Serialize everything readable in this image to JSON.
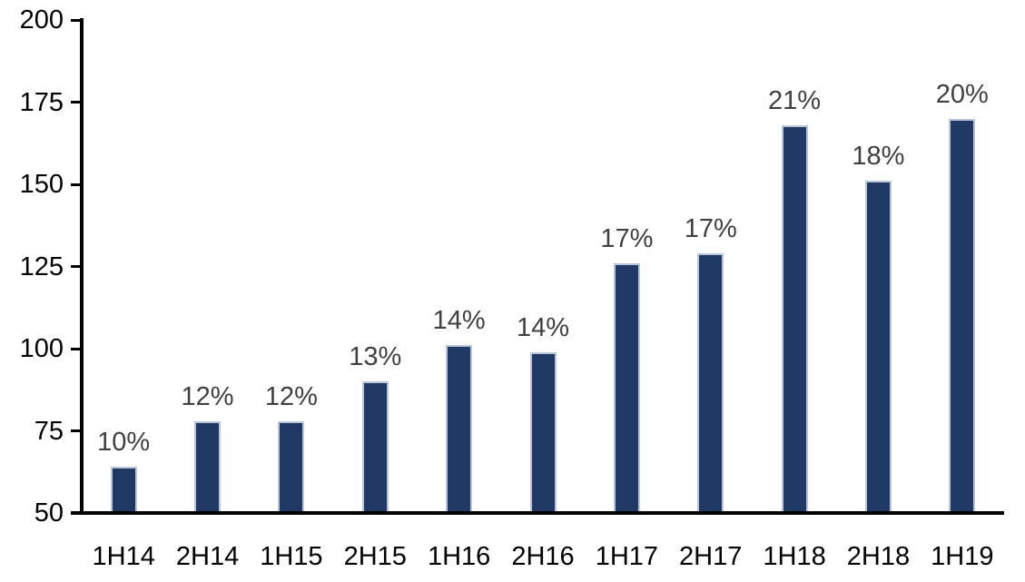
{
  "chart_data": {
    "type": "bar",
    "title": "",
    "xlabel": "",
    "ylabel": "",
    "categories": [
      "1H14",
      "2H14",
      "1H15",
      "2H15",
      "1H16",
      "2H16",
      "1H17",
      "2H17",
      "1H18",
      "2H18",
      "1H19"
    ],
    "values": [
      64,
      78,
      78,
      90,
      101,
      99,
      126,
      129,
      168,
      151,
      170
    ],
    "bar_labels": [
      "10%",
      "12%",
      "12%",
      "13%",
      "14%",
      "14%",
      "17%",
      "17%",
      "21%",
      "18%",
      "20%"
    ],
    "ylim": [
      50,
      200
    ],
    "yticks": [
      200,
      175,
      150,
      125,
      100,
      75,
      50
    ],
    "grid": false,
    "legend": false,
    "colors": {
      "bar_fill": "#1F3864",
      "bar_border": "#B9C5D8",
      "data_label": "#404040",
      "axis_text": "#000000",
      "axis_line": "#000000",
      "background": "#FFFFFF"
    }
  }
}
